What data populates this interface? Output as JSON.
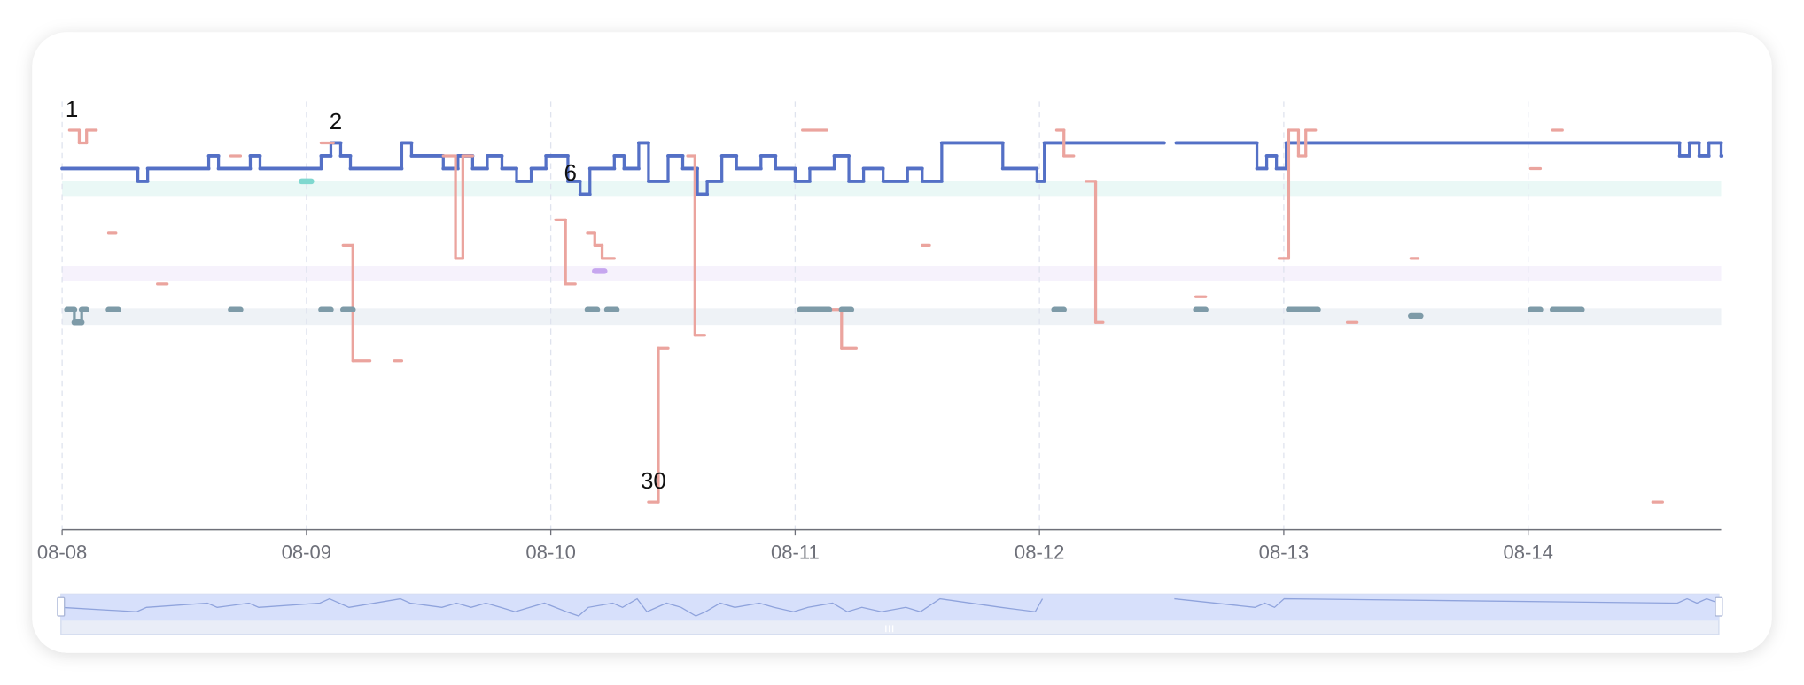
{
  "chart_data": {
    "type": "step",
    "xlim": [
      0,
      6.79
    ],
    "xticks": [
      {
        "value": 0,
        "label": "08-08"
      },
      {
        "value": 1,
        "label": "08-09"
      },
      {
        "value": 2,
        "label": "08-10"
      },
      {
        "value": 3,
        "label": "08-11"
      },
      {
        "value": 4,
        "label": "08-12"
      },
      {
        "value": 5,
        "label": "08-13"
      },
      {
        "value": 6,
        "label": "08-14"
      }
    ],
    "ylim": [
      0,
      32
    ],
    "y_inverted": true,
    "grid": true,
    "bands": [
      {
        "from": 5,
        "to": 6.2,
        "color": "#eaf8f6"
      },
      {
        "from": 11.6,
        "to": 12.8,
        "color": "#f6f2fc"
      },
      {
        "from": 14.9,
        "to": 16.2,
        "color": "#eef2f6"
      }
    ],
    "series": [
      {
        "color": "#5470c6",
        "x": [
          0,
          0.31,
          0.35,
          0.6,
          0.64,
          0.77,
          0.81,
          1.06,
          1.1,
          1.14,
          1.18,
          1.39,
          1.43,
          1.56,
          1.62,
          1.68,
          1.74,
          1.8,
          1.86,
          1.92,
          1.98,
          2.07,
          2.12,
          2.16,
          2.26,
          2.3,
          2.36,
          2.4,
          2.48,
          2.54,
          2.6,
          2.64,
          2.7,
          2.76,
          2.86,
          2.92,
          3.0,
          3.06,
          3.16,
          3.22,
          3.28,
          3.36,
          3.46,
          3.52,
          3.6,
          3.85,
          3.99,
          4.02,
          4.51,
          4.56,
          4.89,
          4.93,
          4.97,
          5.01,
          6.62,
          6.66,
          6.7,
          6.74,
          6.79
        ],
        "values": [
          4,
          5,
          4,
          3,
          4,
          3,
          4,
          3,
          2,
          3,
          4,
          2,
          3,
          4,
          3,
          4,
          3,
          4,
          5,
          4,
          3,
          5,
          6,
          4,
          3,
          4,
          2,
          5,
          3,
          4,
          6,
          5,
          3,
          4,
          3,
          4,
          5,
          4,
          3,
          5,
          4,
          5,
          4,
          5,
          2,
          4,
          5,
          2,
          null,
          2,
          4,
          3,
          4,
          2,
          3,
          2,
          3,
          2,
          3
        ]
      },
      {
        "color": "#eba49e",
        "x": [
          0.03,
          0.07,
          0.1,
          0.14,
          0.19,
          0.22,
          0.39,
          0.43,
          0.69,
          0.73,
          1.06,
          1.11,
          1.15,
          1.19,
          1.26,
          1.36,
          1.39,
          1.56,
          1.61,
          1.64,
          1.68,
          2.02,
          2.06,
          2.1,
          2.15,
          2.18,
          2.21,
          2.26,
          2.4,
          2.44,
          2.48,
          2.56,
          2.59,
          2.63,
          3.03,
          3.13,
          3.14,
          3.19,
          3.25,
          3.52,
          3.55,
          4.07,
          4.1,
          4.14,
          4.19,
          4.23,
          4.26,
          4.64,
          4.68,
          4.98,
          5.02,
          5.06,
          5.09,
          5.13,
          5.26,
          5.3,
          5.52,
          5.55,
          6.01,
          6.05,
          6.1,
          6.14,
          6.51,
          6.55
        ],
        "values": [
          1,
          2,
          1,
          null,
          9,
          null,
          13,
          null,
          3,
          null,
          2,
          null,
          10,
          19,
          null,
          19,
          null,
          3,
          11,
          3,
          null,
          8,
          13,
          null,
          9,
          10,
          11,
          null,
          30,
          18,
          null,
          3,
          17,
          null,
          1,
          null,
          15,
          18,
          null,
          10,
          null,
          1,
          3,
          null,
          5,
          16,
          null,
          14,
          null,
          11,
          1,
          3,
          1,
          null,
          16,
          null,
          11,
          null,
          4,
          null,
          1,
          null,
          30,
          null
        ]
      },
      {
        "color": "#7e9ba8",
        "x": [
          0.02,
          0.05,
          0.08,
          0.1,
          0.19,
          0.23,
          0.69,
          0.73,
          1.06,
          1.1,
          1.15,
          1.19,
          2.15,
          2.19,
          2.23,
          2.27,
          3.02,
          3.14,
          3.19,
          3.23,
          4.06,
          4.1,
          4.64,
          4.68,
          5.02,
          5.14,
          5.52,
          5.56,
          6.01,
          6.05,
          6.1,
          6.22
        ],
        "values": [
          15,
          16,
          15,
          null,
          15,
          null,
          15,
          null,
          15,
          null,
          15,
          null,
          15,
          null,
          15,
          null,
          15,
          null,
          15,
          null,
          15,
          null,
          15,
          null,
          15,
          null,
          15.5,
          null,
          15,
          null,
          15,
          null
        ]
      },
      {
        "color": "#7fd8cf",
        "x": [
          0.98,
          1.02
        ],
        "values": [
          5,
          null
        ]
      },
      {
        "color": "#c6a6ef",
        "x": [
          2.18,
          2.22
        ],
        "values": [
          12,
          null
        ]
      }
    ],
    "annotations": [
      {
        "x": 0.04,
        "y": 1
      },
      {
        "x": 1.12,
        "y": 2
      },
      {
        "x": 2.08,
        "y": 6
      },
      {
        "x": 2.42,
        "y": 30
      }
    ]
  }
}
